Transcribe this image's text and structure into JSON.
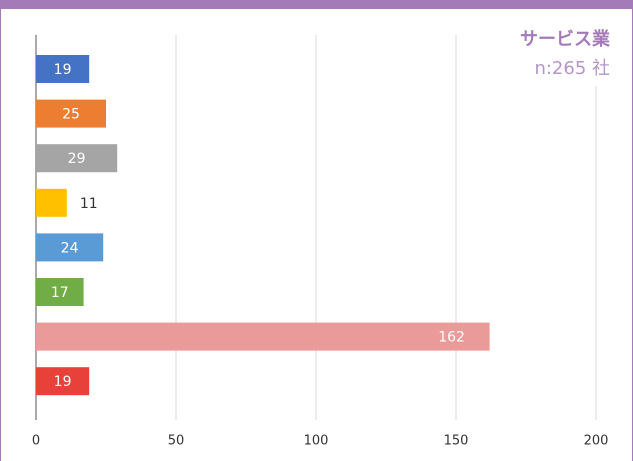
{
  "chart_data": {
    "type": "barh",
    "title": "サービス業",
    "subtitle": "n:265 社",
    "categories": [
      null,
      null,
      null,
      null,
      null,
      null,
      null,
      null
    ],
    "values": [
      19,
      25,
      29,
      11,
      24,
      17,
      162,
      19
    ],
    "colors": [
      "#4472c4",
      "#ed7d31",
      "#a5a5a5",
      "#ffc000",
      "#5b9bd5",
      "#70ad47",
      "#ea9a98",
      "#e8413a"
    ],
    "xlim": [
      0,
      200
    ],
    "xticks": [
      0,
      50,
      100,
      150,
      200
    ],
    "grid": true
  }
}
